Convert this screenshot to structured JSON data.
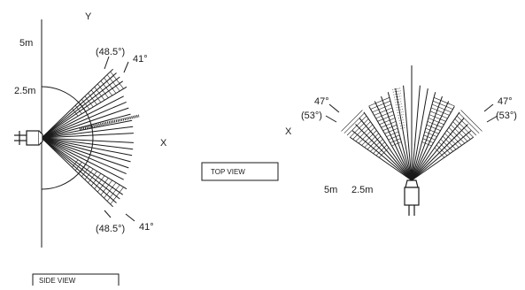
{
  "side_view": {
    "axis_y_label": "Y",
    "axis_x_label": "X",
    "range_far": "5m",
    "range_mid": "2.5m",
    "angle_top_outer": "(48.5°)",
    "angle_top_inner": "41°",
    "angle_bottom_outer": "(48.5°)",
    "angle_bottom_inner": "41°",
    "caption": "SIDE VIEW"
  },
  "top_view": {
    "axis_x_label": "X",
    "angle_left_inner": "47°",
    "angle_left_outer": "(53°)",
    "angle_right_inner": "47°",
    "angle_right_outer": "(53°)",
    "range_far": "5m",
    "range_mid": "2.5m",
    "caption": "TOP VIEW"
  }
}
